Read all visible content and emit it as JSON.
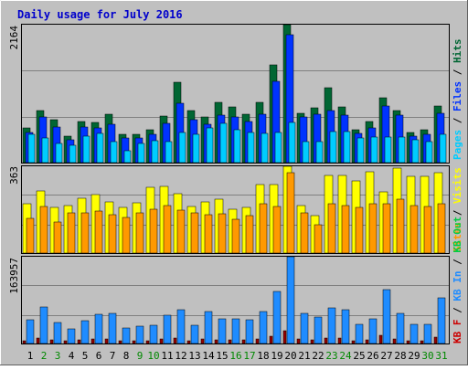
{
  "chart_data": [
    {
      "type": "bar",
      "title": "Daily usage for July 2016",
      "panel": "hits-files-pages",
      "ymax_label": "2164",
      "ylim": [
        0,
        2164
      ],
      "right_labels": [
        "Pages",
        "Files",
        "Hits"
      ],
      "categories": [
        "1",
        "2",
        "3",
        "4",
        "5",
        "6",
        "7",
        "8",
        "9",
        "10",
        "11",
        "12",
        "13",
        "14",
        "15",
        "16",
        "17",
        "18",
        "19",
        "20",
        "21",
        "22",
        "23",
        "24",
        "25",
        "26",
        "27",
        "28",
        "29",
        "30",
        "31"
      ],
      "weekend_days": [
        2,
        3,
        9,
        10,
        16,
        17,
        23,
        24,
        30,
        31
      ],
      "series": [
        {
          "name": "Hits",
          "color": "#006633",
          "values": [
            550,
            820,
            670,
            410,
            640,
            630,
            765,
            450,
            450,
            510,
            730,
            1260,
            810,
            710,
            950,
            875,
            760,
            940,
            1540,
            2164,
            780,
            855,
            1175,
            880,
            515,
            640,
            1015,
            810,
            470,
            510,
            890
          ]
        },
        {
          "name": "Files",
          "color": "#0033ff",
          "values": [
            470,
            720,
            560,
            360,
            555,
            545,
            600,
            390,
            385,
            450,
            610,
            925,
            680,
            600,
            745,
            720,
            640,
            765,
            1270,
            2000,
            715,
            760,
            820,
            740,
            455,
            545,
            895,
            740,
            420,
            450,
            770
          ]
        },
        {
          "name": "Pages",
          "color": "#00ccff",
          "values": [
            450,
            380,
            295,
            270,
            410,
            455,
            335,
            190,
            305,
            345,
            335,
            475,
            445,
            545,
            615,
            520,
            475,
            460,
            475,
            635,
            335,
            335,
            485,
            490,
            390,
            395,
            405,
            400,
            360,
            330,
            440
          ]
        }
      ]
    },
    {
      "type": "bar",
      "panel": "visits-sites",
      "ymax_label": "363",
      "ylim": [
        0,
        363
      ],
      "right_labels": [
        "Sites",
        "Visits"
      ],
      "series": [
        {
          "name": "Visits",
          "color": "#ffff00",
          "values": [
            205,
            260,
            190,
            200,
            230,
            245,
            215,
            190,
            210,
            275,
            280,
            250,
            195,
            215,
            225,
            185,
            190,
            285,
            285,
            363,
            200,
            155,
            325,
            325,
            300,
            340,
            255,
            355,
            320,
            320,
            335
          ]
        },
        {
          "name": "Sites",
          "color": "#ff9900",
          "values": [
            145,
            195,
            130,
            170,
            170,
            175,
            160,
            150,
            170,
            185,
            200,
            180,
            170,
            160,
            165,
            140,
            155,
            205,
            195,
            335,
            170,
            120,
            205,
            200,
            190,
            205,
            205,
            225,
            200,
            195,
            205
          ]
        }
      ]
    },
    {
      "type": "bar",
      "panel": "kbytes",
      "ymax_label": "163957",
      "ylim": [
        0,
        163957
      ],
      "right_labels": [
        "KB F",
        "KB In",
        "KB Out"
      ],
      "series": [
        {
          "name": "KB In",
          "color": "#0066cc",
          "values": [
            0,
            0,
            0,
            0,
            0,
            0,
            0,
            0,
            0,
            0,
            0,
            0,
            0,
            0,
            0,
            0,
            0,
            0,
            0,
            0,
            0,
            0,
            0,
            0,
            0,
            0,
            0,
            0,
            0,
            0,
            0
          ]
        },
        {
          "name": "KB Out",
          "color": "#1f8cff",
          "values": [
            45500,
            68500,
            40000,
            28000,
            43000,
            55500,
            57000,
            30000,
            33000,
            34500,
            54000,
            64000,
            35000,
            60500,
            46000,
            47000,
            45000,
            60000,
            98000,
            163957,
            56500,
            50000,
            68000,
            63000,
            36500,
            47000,
            102000,
            57500,
            37000,
            36500,
            86000
          ]
        },
        {
          "name": "KB F",
          "color": "#990000",
          "values": [
            6000,
            10500,
            6500,
            4500,
            6500,
            8000,
            8000,
            4500,
            5000,
            5500,
            8000,
            9500,
            5500,
            9000,
            7000,
            7000,
            7000,
            9000,
            14000,
            24000,
            8500,
            7500,
            10000,
            9500,
            5500,
            7000,
            15000,
            8500,
            5500,
            5500,
            12500
          ]
        }
      ]
    }
  ],
  "colors": {
    "outer_bg": "#c0c0c0",
    "panel_bg": "#c0c0c0",
    "grid": "#808080",
    "title": "#0000cc",
    "weekday_label": "#000000",
    "weekend_label": "#008800",
    "pages_label": "#00ccff",
    "files_label": "#0033ff",
    "hits_label": "#006633",
    "visits_label": "#ffff00",
    "sites_label": "#ff9900",
    "kbin_label": "#1f8cff",
    "kbout_label": "#00cc44",
    "kbf_label": "#cc0000"
  }
}
